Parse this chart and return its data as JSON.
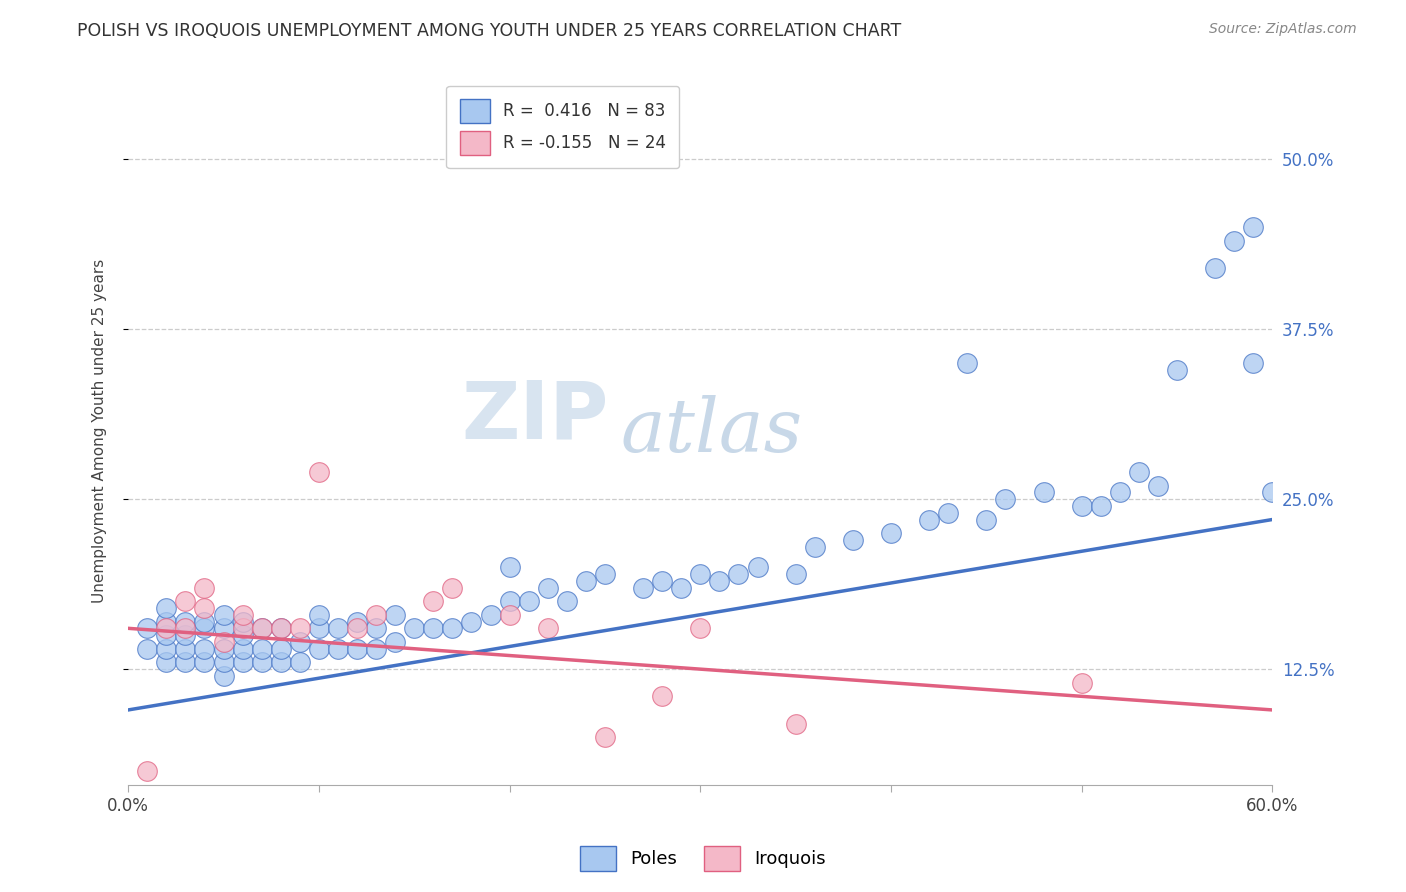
{
  "title": "POLISH VS IROQUOIS UNEMPLOYMENT AMONG YOUTH UNDER 25 YEARS CORRELATION CHART",
  "source": "Source: ZipAtlas.com",
  "ylabel": "Unemployment Among Youth under 25 years",
  "ytick_labels": [
    "12.5%",
    "25.0%",
    "37.5%",
    "50.0%"
  ],
  "ytick_values": [
    0.125,
    0.25,
    0.375,
    0.5
  ],
  "xmin": 0.0,
  "xmax": 0.6,
  "ymin": 0.04,
  "ymax": 0.56,
  "legend_blue_label": "R =  0.416   N = 83",
  "legend_pink_label": "R = -0.155   N = 24",
  "poles_label": "Poles",
  "iroquois_label": "Iroquois",
  "blue_color": "#A8C8F0",
  "pink_color": "#F4B8C8",
  "blue_line_color": "#4472C4",
  "pink_line_color": "#E06080",
  "blue_line_start_y": 0.095,
  "blue_line_end_y": 0.235,
  "pink_line_start_y": 0.155,
  "pink_line_end_y": 0.095,
  "poles_x": [
    0.01,
    0.01,
    0.02,
    0.02,
    0.02,
    0.02,
    0.02,
    0.03,
    0.03,
    0.03,
    0.03,
    0.04,
    0.04,
    0.04,
    0.04,
    0.05,
    0.05,
    0.05,
    0.05,
    0.05,
    0.06,
    0.06,
    0.06,
    0.06,
    0.07,
    0.07,
    0.07,
    0.08,
    0.08,
    0.08,
    0.09,
    0.09,
    0.1,
    0.1,
    0.1,
    0.11,
    0.11,
    0.12,
    0.12,
    0.13,
    0.13,
    0.14,
    0.14,
    0.15,
    0.16,
    0.17,
    0.18,
    0.19,
    0.2,
    0.2,
    0.21,
    0.22,
    0.23,
    0.24,
    0.25,
    0.27,
    0.28,
    0.29,
    0.3,
    0.31,
    0.32,
    0.33,
    0.35,
    0.36,
    0.38,
    0.4,
    0.42,
    0.43,
    0.44,
    0.45,
    0.46,
    0.48,
    0.5,
    0.51,
    0.52,
    0.53,
    0.54,
    0.55,
    0.57,
    0.58,
    0.59,
    0.59,
    0.6
  ],
  "poles_y": [
    0.14,
    0.155,
    0.13,
    0.14,
    0.15,
    0.16,
    0.17,
    0.13,
    0.14,
    0.15,
    0.16,
    0.13,
    0.14,
    0.155,
    0.16,
    0.12,
    0.13,
    0.14,
    0.155,
    0.165,
    0.13,
    0.14,
    0.15,
    0.16,
    0.13,
    0.14,
    0.155,
    0.13,
    0.14,
    0.155,
    0.13,
    0.145,
    0.14,
    0.155,
    0.165,
    0.14,
    0.155,
    0.14,
    0.16,
    0.14,
    0.155,
    0.145,
    0.165,
    0.155,
    0.155,
    0.155,
    0.16,
    0.165,
    0.175,
    0.2,
    0.175,
    0.185,
    0.175,
    0.19,
    0.195,
    0.185,
    0.19,
    0.185,
    0.195,
    0.19,
    0.195,
    0.2,
    0.195,
    0.215,
    0.22,
    0.225,
    0.235,
    0.24,
    0.35,
    0.235,
    0.25,
    0.255,
    0.245,
    0.245,
    0.255,
    0.27,
    0.26,
    0.345,
    0.42,
    0.44,
    0.35,
    0.45,
    0.255
  ],
  "iroquois_x": [
    0.01,
    0.02,
    0.03,
    0.03,
    0.04,
    0.04,
    0.05,
    0.06,
    0.06,
    0.07,
    0.08,
    0.09,
    0.1,
    0.12,
    0.13,
    0.16,
    0.17,
    0.2,
    0.22,
    0.25,
    0.28,
    0.3,
    0.35,
    0.5
  ],
  "iroquois_y": [
    0.05,
    0.155,
    0.155,
    0.175,
    0.17,
    0.185,
    0.145,
    0.155,
    0.165,
    0.155,
    0.155,
    0.155,
    0.27,
    0.155,
    0.165,
    0.175,
    0.185,
    0.165,
    0.155,
    0.075,
    0.105,
    0.155,
    0.085,
    0.115
  ]
}
